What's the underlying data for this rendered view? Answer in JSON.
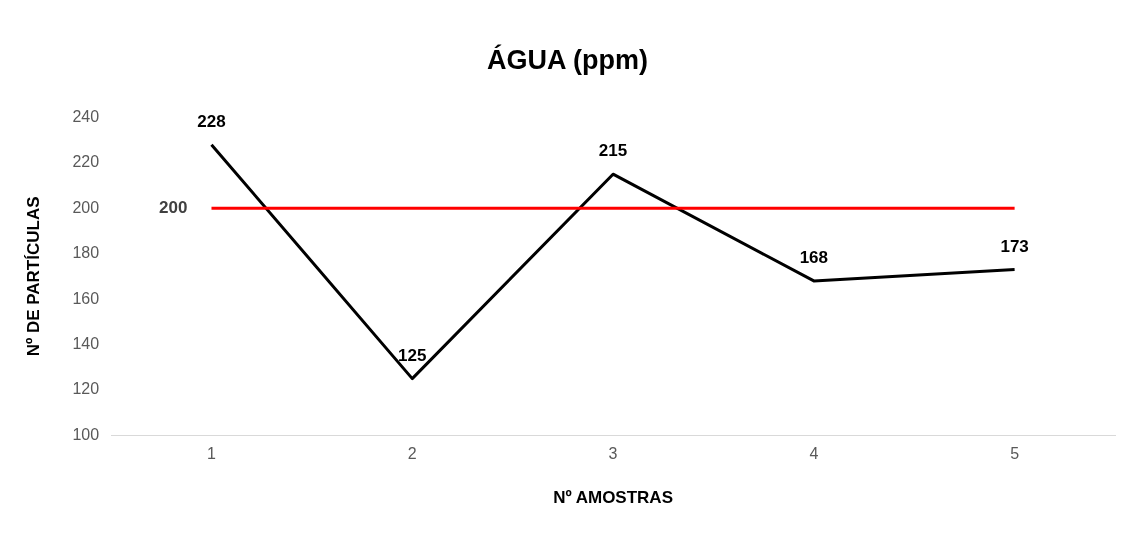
{
  "chart_data": {
    "type": "line",
    "title": "ÁGUA (ppm)",
    "xlabel": "Nº AMOSTRAS",
    "ylabel": "Nº DE PARTÍCULAS",
    "categories": [
      "1",
      "2",
      "3",
      "4",
      "5"
    ],
    "series": [
      {
        "color": "#000000",
        "values": [
          228,
          125,
          215,
          168,
          173
        ]
      }
    ],
    "ylim": [
      100,
      240
    ],
    "yticks": [
      100,
      120,
      140,
      160,
      180,
      200,
      220,
      240
    ],
    "ref_lines": [
      {
        "axis": "y",
        "value": 200,
        "label": "200",
        "color": "#ff0000"
      }
    ],
    "data_labels": true,
    "grid": false,
    "legend": false,
    "marker": "none",
    "line_style": "solid"
  }
}
